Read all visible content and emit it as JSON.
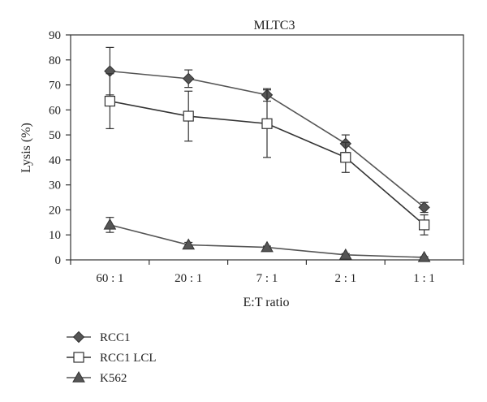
{
  "chart_data": {
    "type": "line",
    "title": "MLTC3",
    "xlabel": "E:T ratio",
    "ylabel": "Lysis (%)",
    "categories": [
      "60 : 1",
      "20 : 1",
      "7 : 1",
      "2 : 1",
      "1 : 1"
    ],
    "ylim": [
      0,
      90
    ],
    "yticks": [
      0,
      10,
      20,
      30,
      40,
      50,
      60,
      70,
      80,
      90
    ],
    "grid": false,
    "legend_position": "bottom-left",
    "series": [
      {
        "name": "RCC1",
        "marker": "diamond",
        "color": "#555555",
        "marker_fill": "#555555",
        "values": [
          75.5,
          72.5,
          66,
          46.5,
          21
        ],
        "error": [
          9.5,
          3.5,
          2.5,
          3.5,
          2
        ]
      },
      {
        "name": "RCC1 LCL",
        "marker": "square",
        "color": "#333333",
        "marker_fill": "#ffffff",
        "values": [
          63.5,
          57.5,
          54.5,
          41,
          14
        ],
        "error": [
          11,
          10,
          13.5,
          6,
          4
        ]
      },
      {
        "name": "K562",
        "marker": "triangle",
        "color": "#555555",
        "marker_fill": "#555555",
        "values": [
          14,
          6,
          5,
          2,
          1
        ],
        "error": [
          3,
          1,
          0.5,
          0.5,
          0.3
        ]
      }
    ]
  }
}
